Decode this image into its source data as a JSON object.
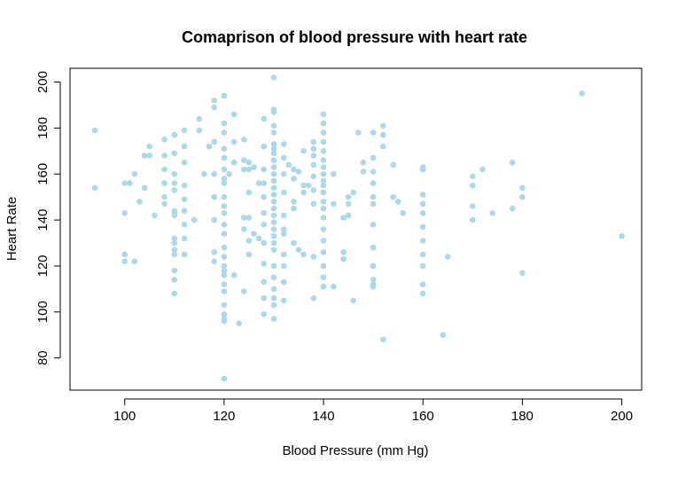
{
  "chart_data": {
    "type": "scatter",
    "title": "Comaprison of blood pressure with heart rate",
    "xlabel": "Blood Pressure (mm Hg)",
    "ylabel": "Heart Rate",
    "xlim": [
      89,
      204
    ],
    "ylim": [
      66,
      206
    ],
    "xticks": [
      100,
      120,
      140,
      160,
      180,
      200
    ],
    "yticks": [
      80,
      100,
      120,
      140,
      160,
      180,
      200
    ],
    "grid": false,
    "legend": "none",
    "point_color": "#add8e6",
    "points": [
      [
        94,
        179
      ],
      [
        94,
        154
      ],
      [
        100,
        156
      ],
      [
        100,
        143
      ],
      [
        100,
        125
      ],
      [
        100,
        122
      ],
      [
        101,
        156
      ],
      [
        102,
        160
      ],
      [
        102,
        122
      ],
      [
        103,
        148
      ],
      [
        104,
        168
      ],
      [
        104,
        154
      ],
      [
        105,
        172
      ],
      [
        105,
        168
      ],
      [
        106,
        142
      ],
      [
        108,
        175
      ],
      [
        108,
        168
      ],
      [
        108,
        162
      ],
      [
        108,
        156
      ],
      [
        108,
        150
      ],
      [
        108,
        147
      ],
      [
        110,
        177
      ],
      [
        110,
        169
      ],
      [
        110,
        160
      ],
      [
        110,
        156
      ],
      [
        110,
        153
      ],
      [
        110,
        144
      ],
      [
        110,
        143
      ],
      [
        110,
        142
      ],
      [
        110,
        132
      ],
      [
        110,
        130
      ],
      [
        110,
        127
      ],
      [
        110,
        125
      ],
      [
        110,
        118
      ],
      [
        110,
        114
      ],
      [
        110,
        108
      ],
      [
        112,
        179
      ],
      [
        112,
        172
      ],
      [
        112,
        165
      ],
      [
        112,
        155
      ],
      [
        112,
        149
      ],
      [
        112,
        144
      ],
      [
        112,
        138
      ],
      [
        112,
        132
      ],
      [
        112,
        125
      ],
      [
        114,
        140
      ],
      [
        115,
        184
      ],
      [
        115,
        179
      ],
      [
        116,
        160
      ],
      [
        117,
        172
      ],
      [
        118,
        192
      ],
      [
        118,
        189
      ],
      [
        118,
        174
      ],
      [
        118,
        160
      ],
      [
        118,
        150
      ],
      [
        118,
        140
      ],
      [
        118,
        126
      ],
      [
        118,
        122
      ],
      [
        120,
        194
      ],
      [
        120,
        182
      ],
      [
        120,
        178
      ],
      [
        120,
        171
      ],
      [
        120,
        167
      ],
      [
        120,
        162
      ],
      [
        120,
        158
      ],
      [
        120,
        156
      ],
      [
        120,
        150
      ],
      [
        120,
        146
      ],
      [
        120,
        143
      ],
      [
        120,
        138
      ],
      [
        120,
        134
      ],
      [
        120,
        128
      ],
      [
        120,
        124
      ],
      [
        120,
        120
      ],
      [
        120,
        118
      ],
      [
        120,
        116
      ],
      [
        120,
        112
      ],
      [
        120,
        109
      ],
      [
        120,
        103
      ],
      [
        120,
        99
      ],
      [
        120,
        97
      ],
      [
        120,
        96
      ],
      [
        120,
        71
      ],
      [
        121,
        160
      ],
      [
        122,
        186
      ],
      [
        122,
        174
      ],
      [
        122,
        165
      ],
      [
        122,
        116
      ],
      [
        123,
        95
      ],
      [
        124,
        175
      ],
      [
        124,
        166
      ],
      [
        124,
        162
      ],
      [
        124,
        141
      ],
      [
        124,
        136
      ],
      [
        124,
        109
      ],
      [
        125,
        165
      ],
      [
        125,
        162
      ],
      [
        125,
        152
      ],
      [
        125,
        141
      ],
      [
        125,
        131
      ],
      [
        125,
        125
      ],
      [
        126,
        163
      ],
      [
        126,
        134
      ],
      [
        127,
        156
      ],
      [
        127,
        132
      ],
      [
        128,
        184
      ],
      [
        128,
        172
      ],
      [
        128,
        162
      ],
      [
        128,
        156
      ],
      [
        128,
        150
      ],
      [
        128,
        143
      ],
      [
        128,
        138
      ],
      [
        128,
        130
      ],
      [
        128,
        121
      ],
      [
        128,
        113
      ],
      [
        128,
        106
      ],
      [
        128,
        99
      ],
      [
        130,
        202
      ],
      [
        130,
        188
      ],
      [
        130,
        187
      ],
      [
        130,
        181
      ],
      [
        130,
        178
      ],
      [
        130,
        173
      ],
      [
        130,
        171
      ],
      [
        130,
        169
      ],
      [
        130,
        166
      ],
      [
        130,
        163
      ],
      [
        130,
        160
      ],
      [
        130,
        157
      ],
      [
        130,
        154
      ],
      [
        130,
        151
      ],
      [
        130,
        148
      ],
      [
        130,
        145
      ],
      [
        130,
        142
      ],
      [
        130,
        139
      ],
      [
        130,
        136
      ],
      [
        130,
        133
      ],
      [
        130,
        130
      ],
      [
        130,
        127
      ],
      [
        130,
        120
      ],
      [
        130,
        115
      ],
      [
        130,
        110
      ],
      [
        130,
        106
      ],
      [
        130,
        103
      ],
      [
        130,
        97
      ],
      [
        132,
        173
      ],
      [
        132,
        167
      ],
      [
        132,
        160
      ],
      [
        132,
        152
      ],
      [
        132,
        142
      ],
      [
        132,
        136
      ],
      [
        132,
        134
      ],
      [
        132,
        125
      ],
      [
        132,
        120
      ],
      [
        132,
        113
      ],
      [
        132,
        105
      ],
      [
        133,
        164
      ],
      [
        134,
        162
      ],
      [
        134,
        158
      ],
      [
        134,
        148
      ],
      [
        134,
        145
      ],
      [
        134,
        130
      ],
      [
        135,
        161
      ],
      [
        135,
        127
      ],
      [
        136,
        170
      ],
      [
        136,
        155
      ],
      [
        136,
        152
      ],
      [
        136,
        125
      ],
      [
        137,
        155
      ],
      [
        138,
        174
      ],
      [
        138,
        171
      ],
      [
        138,
        168
      ],
      [
        138,
        164
      ],
      [
        138,
        159
      ],
      [
        138,
        153
      ],
      [
        138,
        147
      ],
      [
        138,
        124
      ],
      [
        138,
        106
      ],
      [
        140,
        186
      ],
      [
        140,
        182
      ],
      [
        140,
        178
      ],
      [
        140,
        174
      ],
      [
        140,
        170
      ],
      [
        140,
        166
      ],
      [
        140,
        163
      ],
      [
        140,
        160
      ],
      [
        140,
        157
      ],
      [
        140,
        155
      ],
      [
        140,
        152
      ],
      [
        140,
        148
      ],
      [
        140,
        145
      ],
      [
        140,
        141
      ],
      [
        140,
        136
      ],
      [
        140,
        131
      ],
      [
        140,
        126
      ],
      [
        140,
        120
      ],
      [
        140,
        115
      ],
      [
        140,
        111
      ],
      [
        142,
        160
      ],
      [
        142,
        147
      ],
      [
        142,
        111
      ],
      [
        144,
        141
      ],
      [
        144,
        126
      ],
      [
        144,
        123
      ],
      [
        145,
        150
      ],
      [
        145,
        142
      ],
      [
        145,
        147
      ],
      [
        146,
        152
      ],
      [
        146,
        105
      ],
      [
        147,
        178
      ],
      [
        148,
        165
      ],
      [
        148,
        161
      ],
      [
        150,
        178
      ],
      [
        150,
        167
      ],
      [
        150,
        161
      ],
      [
        150,
        156
      ],
      [
        150,
        150
      ],
      [
        150,
        147
      ],
      [
        150,
        138
      ],
      [
        150,
        128
      ],
      [
        150,
        120
      ],
      [
        150,
        114
      ],
      [
        150,
        112
      ],
      [
        150,
        111
      ],
      [
        152,
        181
      ],
      [
        152,
        177
      ],
      [
        152,
        172
      ],
      [
        152,
        88
      ],
      [
        154,
        164
      ],
      [
        154,
        150
      ],
      [
        155,
        148
      ],
      [
        156,
        143
      ],
      [
        160,
        163
      ],
      [
        160,
        162
      ],
      [
        160,
        151
      ],
      [
        160,
        147
      ],
      [
        160,
        143
      ],
      [
        160,
        137
      ],
      [
        160,
        131
      ],
      [
        160,
        125
      ],
      [
        160,
        120
      ],
      [
        160,
        112
      ],
      [
        160,
        108
      ],
      [
        164,
        90
      ],
      [
        165,
        124
      ],
      [
        170,
        159
      ],
      [
        170,
        155
      ],
      [
        170,
        146
      ],
      [
        170,
        140
      ],
      [
        172,
        162
      ],
      [
        174,
        143
      ],
      [
        178,
        165
      ],
      [
        178,
        145
      ],
      [
        180,
        154
      ],
      [
        180,
        150
      ],
      [
        180,
        117
      ],
      [
        192,
        195
      ],
      [
        200,
        133
      ]
    ]
  }
}
